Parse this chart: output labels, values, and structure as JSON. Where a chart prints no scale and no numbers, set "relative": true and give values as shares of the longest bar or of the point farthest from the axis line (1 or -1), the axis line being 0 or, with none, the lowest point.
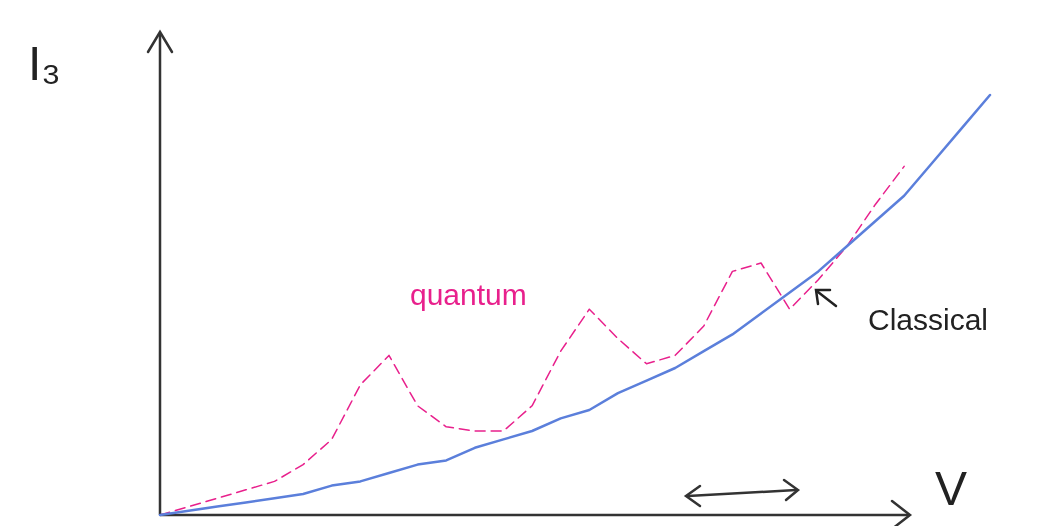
{
  "chart_data": {
    "type": "line",
    "relative": true,
    "xlabel": "V",
    "ylabel": "I₃",
    "categories": [
      null,
      null,
      null,
      null,
      null,
      null,
      null,
      null,
      null,
      null,
      null,
      null,
      null,
      null,
      null,
      null,
      null,
      null,
      null,
      null,
      null,
      null,
      null,
      null,
      null,
      null,
      null,
      null,
      null,
      null
    ],
    "series": [
      {
        "name": "quantum",
        "color": "#e8208c",
        "line_style": "dashed",
        "values": [
          0,
          0.02,
          0.04,
          0.06,
          0.08,
          0.12,
          0.18,
          0.31,
          0.38,
          0.26,
          0.21,
          0.2,
          0.2,
          0.26,
          0.39,
          0.49,
          0.42,
          0.36,
          0.38,
          0.45,
          0.58,
          0.6,
          0.49,
          0.56,
          0.64,
          0.74,
          0.83,
          null,
          null,
          null
        ]
      },
      {
        "name": "Classical",
        "color": "#5b7fdb",
        "values": [
          0,
          0.01,
          0.02,
          0.03,
          0.04,
          0.05,
          0.07,
          0.08,
          0.1,
          0.12,
          0.13,
          0.16,
          0.18,
          0.2,
          0.23,
          0.25,
          0.29,
          0.32,
          0.35,
          0.39,
          0.43,
          0.48,
          0.53,
          0.58,
          0.64,
          0.7,
          0.76,
          0.84,
          0.92,
          1
        ]
      }
    ]
  }
}
